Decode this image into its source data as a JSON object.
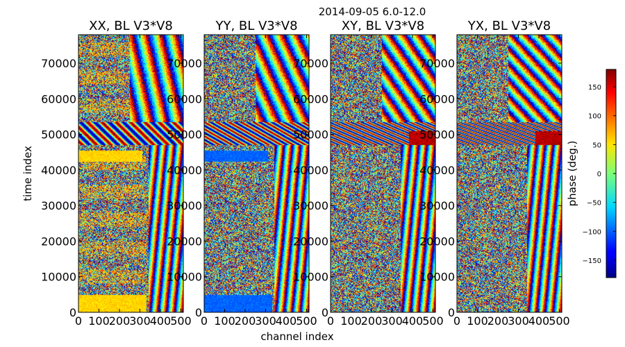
{
  "chart_data": {
    "type": "heatmap",
    "suptitle": "2014-09-05 6.0-12.0",
    "xlabel": "channel index",
    "ylabel": "time index",
    "xlim": [
      0,
      512
    ],
    "ylim": [
      0,
      78000
    ],
    "xticks": [
      0,
      100,
      200,
      300,
      400,
      500
    ],
    "xtick_labels": [
      "0",
      "100",
      "200",
      "300",
      "400",
      "500"
    ],
    "yticks": [
      0,
      10000,
      20000,
      30000,
      40000,
      50000,
      60000,
      70000
    ],
    "ytick_labels": [
      "0",
      "10000",
      "20000",
      "30000",
      "40000",
      "50000",
      "60000",
      "70000"
    ],
    "panels": [
      {
        "title": "XX, BL V3*V8",
        "band_phase_deg": 60
      },
      {
        "title": "YY, BL V3*V8",
        "band_phase_deg": -100
      },
      {
        "title": "XY, BL V3*V8",
        "band_phase_deg": null
      },
      {
        "title": "YX, BL V3*V8",
        "band_phase_deg": null
      }
    ],
    "colorbar": {
      "label": "phase (deg.)",
      "range": [
        -180,
        180
      ],
      "ticks": [
        -150,
        -100,
        -50,
        0,
        50,
        100,
        150
      ],
      "tick_labels": [
        "−150",
        "−100",
        "−50",
        "0",
        "50",
        "100",
        "150"
      ],
      "colormap": "jet"
    },
    "grid": false
  }
}
